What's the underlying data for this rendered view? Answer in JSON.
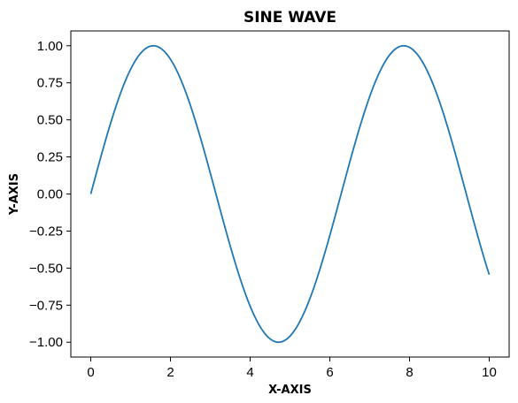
{
  "chart_data": {
    "type": "line",
    "title": "SINE WAVE",
    "xlabel": "X-AXIS",
    "ylabel": "Y-AXIS",
    "xlim": [
      -0.5,
      10.5
    ],
    "ylim": [
      -1.1,
      1.1
    ],
    "xticks": [
      0,
      2,
      4,
      6,
      8,
      10
    ],
    "xtick_labels": [
      "0",
      "2",
      "4",
      "6",
      "8",
      "10"
    ],
    "yticks": [
      1.0,
      0.75,
      0.5,
      0.25,
      0.0,
      -0.25,
      -0.5,
      -0.75,
      -1.0
    ],
    "ytick_labels": [
      "1.00",
      "0.75",
      "0.50",
      "0.25",
      "0.00",
      "−0.25",
      "−0.50",
      "−0.75",
      "−1.00"
    ],
    "grid": false,
    "series": [
      {
        "color": "#1f77b4",
        "function": "sin(x)",
        "x_range": [
          0,
          10
        ]
      }
    ]
  }
}
